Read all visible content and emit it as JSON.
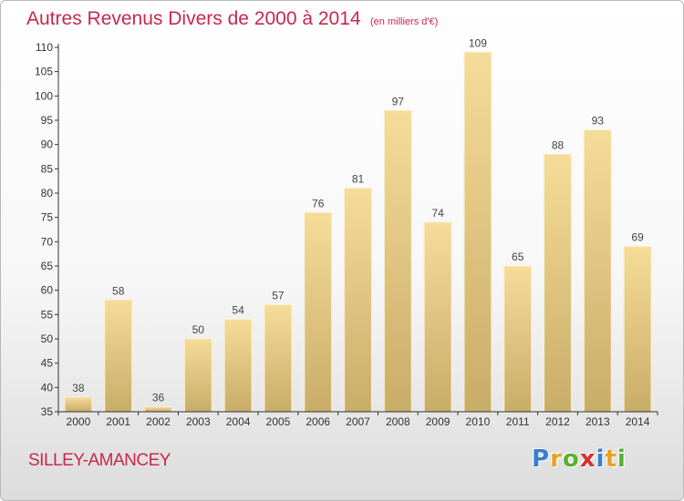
{
  "header": {
    "title": "Autres Revenus Divers de 2000 à 2014",
    "unit": "(en milliers d'€)"
  },
  "footer": {
    "location": "SILLEY-AMANCEY",
    "logo_letters": [
      "P",
      "r",
      "o",
      "x",
      "i",
      "t",
      "i"
    ],
    "logo_colors": [
      "#3a7fcf",
      "#e8a020",
      "#5ab030",
      "#d83030",
      "#3a7fcf",
      "#e8a020",
      "#5ab030"
    ]
  },
  "chart_data": {
    "type": "bar",
    "title": "Autres Revenus Divers de 2000 à 2014",
    "subtitle": "(en milliers d'€)",
    "xlabel": "",
    "ylabel": "",
    "categories": [
      "2000",
      "2001",
      "2002",
      "2003",
      "2004",
      "2005",
      "2006",
      "2007",
      "2008",
      "2009",
      "2010",
      "2011",
      "2012",
      "2013",
      "2014"
    ],
    "values": [
      38,
      58,
      36,
      50,
      54,
      57,
      76,
      81,
      97,
      74,
      109,
      65,
      88,
      93,
      69
    ],
    "ylim": [
      35,
      110
    ],
    "yticks": [
      35,
      40,
      45,
      50,
      55,
      60,
      65,
      70,
      75,
      80,
      85,
      90,
      95,
      100,
      105,
      110
    ],
    "grid": false,
    "bar_color_top": "#f5dc98",
    "bar_color_bottom": "#c8ad68",
    "axis_color": "#333333",
    "title_color": "#c8284a"
  }
}
